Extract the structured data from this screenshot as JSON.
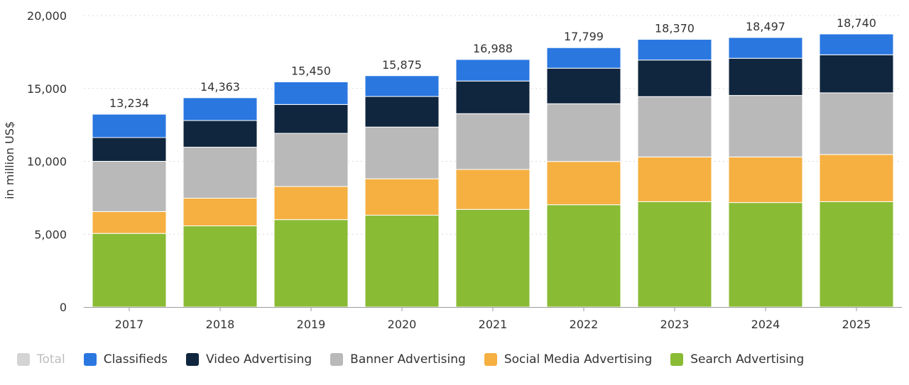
{
  "chart_data": {
    "type": "bar",
    "stacked": true,
    "ylabel": "in million US$",
    "ylim": [
      0,
      20000
    ],
    "yticks": [
      0,
      5000,
      10000,
      15000,
      20000
    ],
    "ytick_labels": [
      "0",
      "5,000",
      "10,000",
      "15,000",
      "20,000"
    ],
    "grid": "horizontal dotted",
    "legend_position": "bottom",
    "categories": [
      "2017",
      "2018",
      "2019",
      "2020",
      "2021",
      "2022",
      "2023",
      "2024",
      "2025"
    ],
    "totals": [
      13234,
      14363,
      15450,
      15875,
      16988,
      17799,
      18370,
      18497,
      18740
    ],
    "total_labels": [
      "13,234",
      "14,363",
      "15,450",
      "15,875",
      "16,988",
      "17,799",
      "18,370",
      "18,497",
      "18,740"
    ],
    "series": [
      {
        "name": "Search Advertising",
        "color": "#8abb35",
        "values": [
          5050,
          5570,
          6000,
          6300,
          6700,
          7020,
          7230,
          7170,
          7230
        ]
      },
      {
        "name": "Social Media Advertising",
        "color": "#f5b041",
        "values": [
          1500,
          1900,
          2270,
          2500,
          2740,
          2970,
          3070,
          3130,
          3240
        ]
      },
      {
        "name": "Banner Advertising",
        "color": "#b9b9b9",
        "values": [
          3450,
          3500,
          3650,
          3550,
          3830,
          3960,
          4140,
          4220,
          4230
        ]
      },
      {
        "name": "Video Advertising",
        "color": "#10263e",
        "values": [
          1630,
          1830,
          1980,
          2100,
          2240,
          2440,
          2510,
          2550,
          2610
        ]
      },
      {
        "name": "Classifieds",
        "color": "#2a77e0",
        "values": [
          1604,
          1563,
          1550,
          1425,
          1478,
          1409,
          1420,
          1427,
          1430
        ]
      }
    ]
  },
  "legend": [
    {
      "label": "Total",
      "color": "#d4d4d4",
      "active": false,
      "icon": "square-swatch"
    },
    {
      "label": "Classifieds",
      "color": "#2a77e0",
      "active": true,
      "icon": "square-swatch"
    },
    {
      "label": "Video Advertising",
      "color": "#10263e",
      "active": true,
      "icon": "square-swatch"
    },
    {
      "label": "Banner Advertising",
      "color": "#b9b9b9",
      "active": true,
      "icon": "square-swatch"
    },
    {
      "label": "Social Media Advertising",
      "color": "#f5b041",
      "active": true,
      "icon": "square-swatch"
    },
    {
      "label": "Search Advertising",
      "color": "#8abb35",
      "active": true,
      "icon": "square-swatch"
    }
  ]
}
